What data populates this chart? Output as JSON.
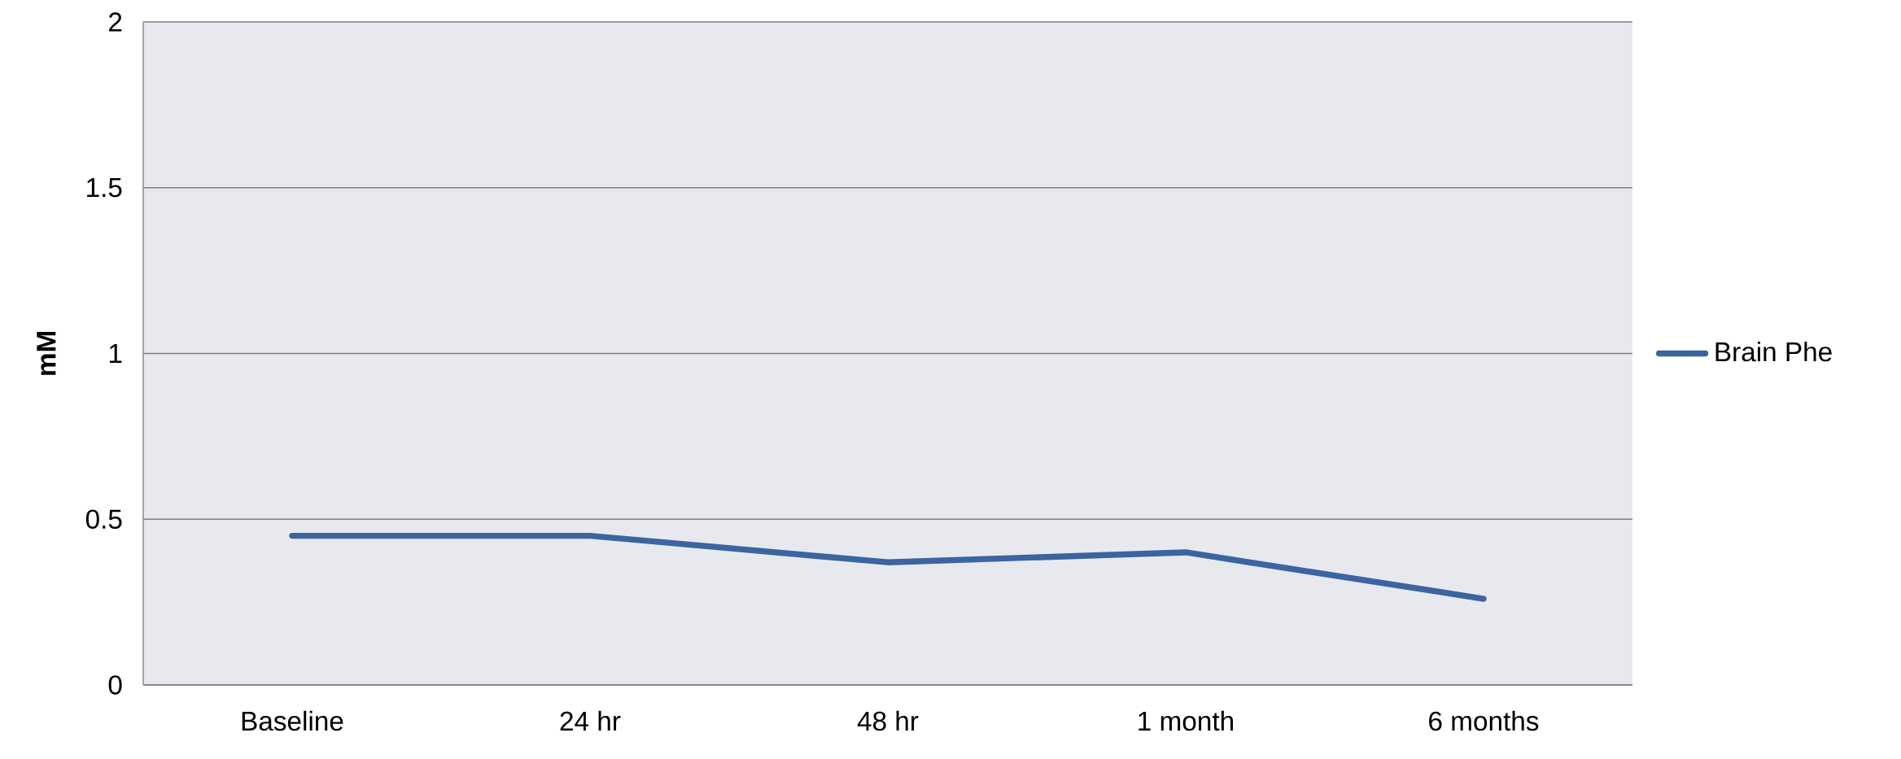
{
  "chart_data": {
    "type": "line",
    "ylabel": "mM",
    "categories": [
      "Baseline",
      "24 hr",
      "48 hr",
      "1 month",
      "6 months"
    ],
    "series": [
      {
        "name": "Brain Phe",
        "color": "#3b64a0",
        "values": [
          0.45,
          0.45,
          0.37,
          0.4,
          0.26
        ]
      }
    ],
    "ylim": [
      0,
      2
    ],
    "yticks": [
      0,
      0.5,
      1,
      1.5,
      2
    ],
    "grid": "y",
    "legend": "right",
    "marker": "none",
    "line_style": "solid"
  }
}
